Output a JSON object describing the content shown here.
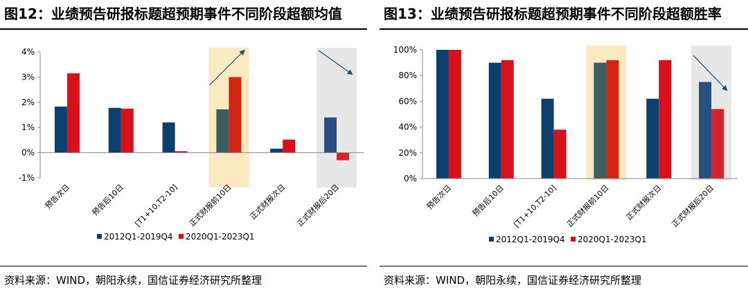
{
  "colors": {
    "series1": "#0b3f6e",
    "series2": "#d7101c",
    "hl_yellow": "#fbe9c2",
    "hl_gray": "#e7e7e7",
    "highlight1_series1": "#3d5d5f",
    "highlight1_series2": "#d32612",
    "highlight2_series1": "#284f7f",
    "highlight2_series2": "#d8232c",
    "arrow": "#1f4e79"
  },
  "panels": [
    {
      "title": "图12：业绩预告研报标题超预期事件不同阶段超额均值",
      "source": "资料来源：WIND，朝阳永续，国信证券经济研究所整理"
    },
    {
      "title": "图13：业绩预告研报标题超预期事件不同阶段超额胜率",
      "source": "资料来源：WIND，朝阳永续，国信证券经济研究所整理"
    }
  ],
  "chart_data": [
    {
      "type": "bar",
      "categories": [
        "预告次日",
        "预告后10日",
        "[T1+10,T2-10]",
        "正式财报前10日",
        "正式财报次日",
        "正式财报后20日"
      ],
      "series": [
        {
          "name": "2012Q1-2019Q4",
          "values": [
            1.83,
            1.78,
            1.2,
            1.72,
            0.16,
            1.4
          ]
        },
        {
          "name": "2020Q1-2023Q1",
          "values": [
            3.15,
            1.75,
            0.06,
            3.0,
            0.52,
            -0.3
          ]
        }
      ],
      "ylim": [
        -1,
        4
      ],
      "yticks": [
        -1,
        0,
        1,
        2,
        3,
        4
      ],
      "ytick_labels": [
        "-1%",
        "0%",
        "1%",
        "2%",
        "3%",
        "4%"
      ],
      "highlights": [
        {
          "category_index": 3,
          "style": "yellow",
          "arrow": "up"
        },
        {
          "category_index": 5,
          "style": "gray",
          "arrow": "down"
        }
      ],
      "legend_position": "bottom-left",
      "grid": false
    },
    {
      "type": "bar",
      "categories": [
        "预告次日",
        "预告后10日",
        "[T1+10,T2-10]",
        "正式财报前10日",
        "正式财报次日",
        "正式财报后20日"
      ],
      "series": [
        {
          "name": "2012Q1-2019Q4",
          "values": [
            100,
            90,
            62,
            90,
            62,
            75
          ]
        },
        {
          "name": "2020Q1-2023Q1",
          "values": [
            100,
            92,
            38,
            92,
            92,
            54
          ]
        }
      ],
      "ylim": [
        0,
        100
      ],
      "yticks": [
        0,
        20,
        40,
        60,
        80,
        100
      ],
      "ytick_labels": [
        "0%",
        "20%",
        "40%",
        "60%",
        "80%",
        "100%"
      ],
      "highlights": [
        {
          "category_index": 3,
          "style": "yellow",
          "arrow": "none"
        },
        {
          "category_index": 5,
          "style": "gray",
          "arrow": "down"
        }
      ],
      "legend_position": "bottom-left",
      "grid": false
    }
  ]
}
